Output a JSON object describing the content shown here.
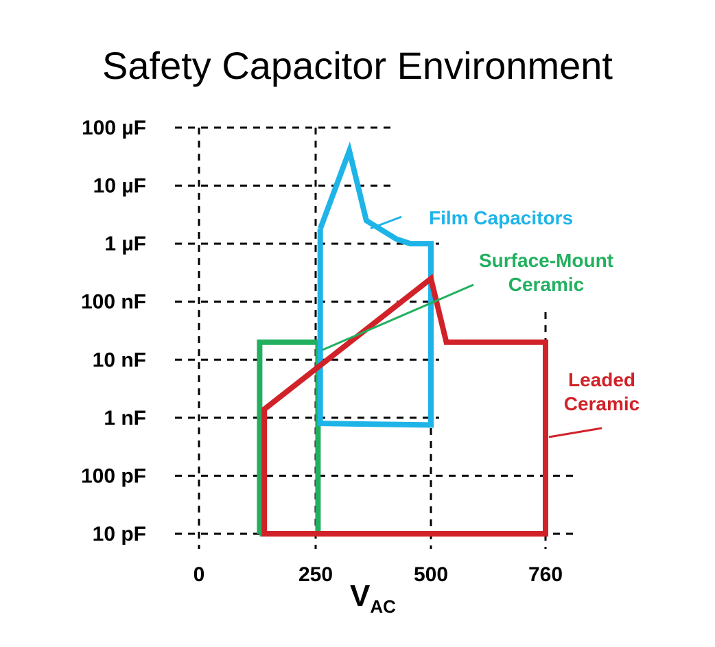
{
  "chart_data": {
    "type": "line",
    "title": "Safety Capacitor Environment",
    "xlabel": "V",
    "xlabel_subscript": "AC",
    "ylabel": "",
    "x_ticks": [
      {
        "value": 0,
        "label": "0"
      },
      {
        "value": 250,
        "label": "250"
      },
      {
        "value": 500,
        "label": "500"
      },
      {
        "value": 760,
        "label": "760"
      }
    ],
    "y_ticks": [
      {
        "value": 10,
        "label": "10 pF"
      },
      {
        "value": 100,
        "label": "100 pF"
      },
      {
        "value": 1000,
        "label": "1 nF"
      },
      {
        "value": 10000,
        "label": "10 nF"
      },
      {
        "value": 100000,
        "label": "100 nF"
      },
      {
        "value": 1000000,
        "label": "1 µF"
      },
      {
        "value": 10000000,
        "label": "10 µF"
      },
      {
        "value": 100000000,
        "label": "100 µF"
      }
    ],
    "y_scale": "log",
    "y_units": "pF",
    "grid": true,
    "series": [
      {
        "name": "Film Capacitors",
        "color": "#1fb4e8",
        "label_lines": [
          "Film Capacitors"
        ],
        "points": [
          [
            260,
            1800000
          ],
          [
            323,
            40000000
          ],
          [
            360,
            2500000
          ],
          [
            425,
            1200000
          ],
          [
            455,
            1000000
          ],
          [
            500,
            1000000
          ],
          [
            500,
            750
          ],
          [
            260,
            800
          ],
          [
            260,
            1800000
          ]
        ]
      },
      {
        "name": "Surface-Mount Ceramic",
        "color": "#22b05f",
        "label_lines": [
          "Surface-Mount",
          "Ceramic"
        ],
        "points": [
          [
            130,
            10
          ],
          [
            130,
            20000
          ],
          [
            255,
            20000
          ],
          [
            255,
            10
          ],
          [
            130,
            10
          ]
        ]
      },
      {
        "name": "Leaded Ceramic",
        "color": "#d12229",
        "label_lines": [
          "Leaded",
          "Ceramic"
        ],
        "points": [
          [
            255,
            10
          ],
          [
            760,
            10
          ],
          [
            760,
            20000
          ],
          [
            535,
            20000
          ],
          [
            500,
            250000
          ],
          [
            140,
            1400
          ],
          [
            140,
            10
          ],
          [
            255,
            10
          ]
        ]
      }
    ]
  }
}
